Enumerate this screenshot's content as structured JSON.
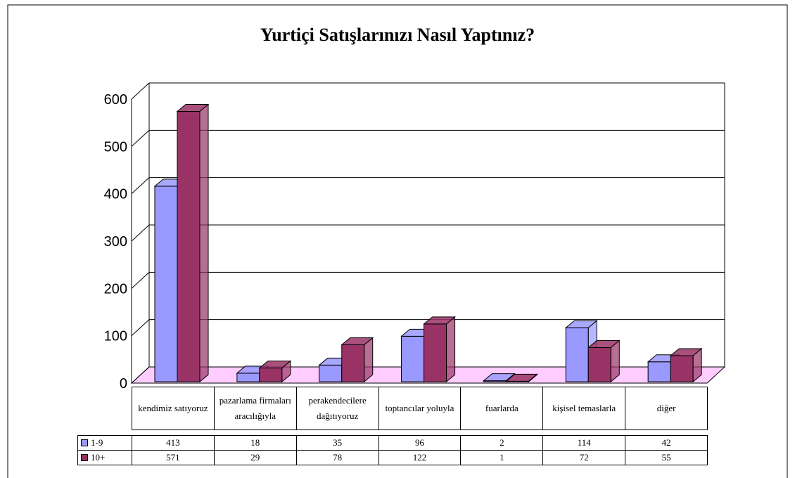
{
  "chart_data": {
    "type": "bar3d",
    "title": "Yurtiçi Satışlarınızı Nasıl Yaptınız?",
    "categories": [
      "kendimiz satıyoruz",
      "pazarlama firmaları aracılığıyla",
      "perakendecilere dağıtıyoruz",
      "toptancılar yoluyla",
      "fuarlarda",
      "kişisel temaslarla",
      "diğer"
    ],
    "series": [
      {
        "name": "1-9",
        "color": "#9999ff",
        "values": [
          413,
          18,
          35,
          96,
          2,
          114,
          42
        ]
      },
      {
        "name": "10+",
        "color": "#993366",
        "values": [
          571,
          29,
          78,
          122,
          1,
          72,
          55
        ]
      }
    ],
    "ylim": [
      0,
      600
    ],
    "yticks": [
      0,
      100,
      200,
      300,
      400,
      500,
      600
    ],
    "grid": true,
    "floor_color": "#ffccff",
    "data_table": true
  }
}
